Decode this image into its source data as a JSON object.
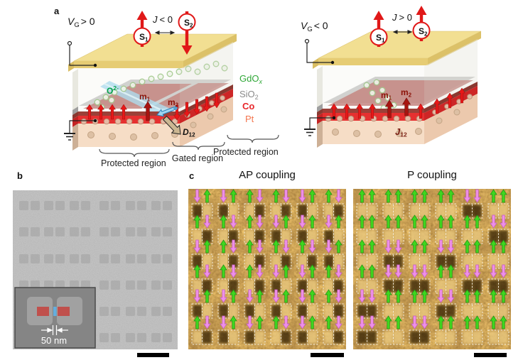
{
  "figure": {
    "panel_a": {
      "label": "a",
      "left": {
        "vg_sym": "V",
        "vg_sub": "G",
        "vg_rel": "> 0",
        "j_sym": "J",
        "j_rel": "< 0",
        "s1_base": "S",
        "s1_sub": "1",
        "s1_direction": "up",
        "s2_base": "S",
        "s2_sub": "2",
        "s2_direction": "down",
        "oxygen_base": "O",
        "oxygen_sup": "2-",
        "m1_base": "m",
        "m1_sub": "1",
        "m2_base": "m",
        "m2_sub": "2",
        "dmi_base": "D",
        "dmi_sub": "12",
        "region_left": "Protected region",
        "region_mid": "Gated region",
        "region_right": "Protected region"
      },
      "right": {
        "vg_sym": "V",
        "vg_sub": "G",
        "vg_rel": "< 0",
        "j_sym": "J",
        "j_rel": "> 0",
        "s1_base": "S",
        "s1_sub": "1",
        "s1_direction": "up",
        "s2_base": "S",
        "s2_sub": "2",
        "s2_direction": "up",
        "m1_base": "m",
        "m1_sub": "1",
        "m2_base": "m",
        "m2_sub": "2",
        "exchange_base": "J",
        "exchange_sub": "12"
      },
      "legend": {
        "gdo_base": "GdO",
        "gdo_sub": "x",
        "gdo_color": "#2fa737",
        "sio_base": "SiO",
        "sio_sub": "2",
        "sio_color": "#8a8a8a",
        "co": "Co",
        "co_color": "#e8262a",
        "pt": "Pt",
        "pt_color": "#f4764f"
      }
    },
    "panel_b": {
      "label": "b",
      "inset_scale_label": "50 nm",
      "array_rows": 6,
      "array_cols": 6
    },
    "panel_c": {
      "label": "c",
      "ap_title": "AP coupling",
      "p_title": "P coupling",
      "arrow_legend": {
        "g": "green up (magnetization up)",
        "p": "pink down (magnetization down)"
      },
      "ap_grid": [
        [
          "pg",
          "pg",
          "gp",
          "gp",
          "pg",
          "gp"
        ],
        [
          "gp",
          "gp",
          "gp",
          "pg",
          "pg",
          "pg"
        ],
        [
          "pg",
          "gp",
          "gp",
          "gp",
          "gp",
          "pg"
        ],
        [
          "gp",
          "gp",
          "gp",
          "pg",
          "pg",
          "gp"
        ],
        [
          "pg",
          "pg",
          "pg",
          "pg",
          "pg",
          "gp"
        ],
        [
          "gp",
          "pg",
          "pg",
          "gp",
          "pg",
          "gp"
        ]
      ],
      "p_grid": [
        [
          "gg",
          "gg",
          "gg",
          "gg",
          "pp",
          "gg"
        ],
        [
          "gg",
          "gg",
          "gg",
          "gg",
          "gg",
          "pp"
        ],
        [
          "gg",
          "pp",
          "gg",
          "pp",
          "gg",
          "gg"
        ],
        [
          "gg",
          "pp",
          "pp",
          "gg",
          "pp",
          "pp"
        ],
        [
          "pp",
          "gg",
          "gg",
          "pp",
          "gg",
          "gg"
        ],
        [
          "pp",
          "gg",
          "pp",
          "gg",
          "gg",
          "gg"
        ]
      ]
    },
    "colors": {
      "arrow_up_green": "#3fd61f",
      "arrow_down_pink": "#ee8fe8",
      "spin_red": "#e01818",
      "mfm_brown": "#9a6018",
      "sem_gray": "#8c8c8c"
    }
  }
}
